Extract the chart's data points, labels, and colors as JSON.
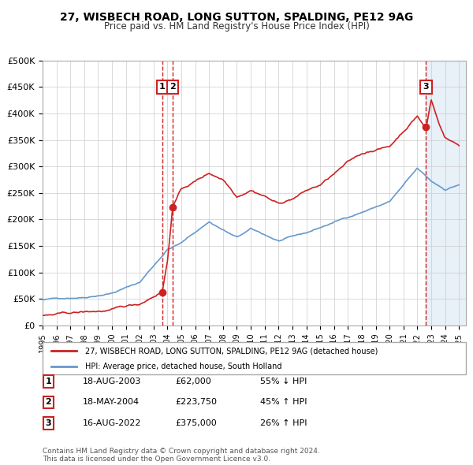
{
  "title": "27, WISBECH ROAD, LONG SUTTON, SPALDING, PE12 9AG",
  "subtitle": "Price paid vs. HM Land Registry's House Price Index (HPI)",
  "xlabel": "",
  "ylabel": "",
  "ylim": [
    0,
    500000
  ],
  "xlim_start": 1995.0,
  "xlim_end": 2025.5,
  "yticks": [
    0,
    50000,
    100000,
    150000,
    200000,
    250000,
    300000,
    350000,
    400000,
    450000,
    500000
  ],
  "ytick_labels": [
    "£0",
    "£50K",
    "£100K",
    "£150K",
    "£200K",
    "£250K",
    "£300K",
    "£350K",
    "£400K",
    "£450K",
    "£500K"
  ],
  "hpi_color": "#6699cc",
  "price_color": "#cc2222",
  "sale_dot_color": "#cc2222",
  "vline_color": "#cc2222",
  "bg_shade_color": "#e8f0f8",
  "sale1_x": 2003.625,
  "sale1_y": 62000,
  "sale1_label": "1",
  "sale2_x": 2004.375,
  "sale2_y": 223750,
  "sale2_label": "2",
  "sale3_x": 2022.625,
  "sale3_y": 375000,
  "sale3_label": "3",
  "legend_line1": "27, WISBECH ROAD, LONG SUTTON, SPALDING, PE12 9AG (detached house)",
  "legend_line2": "HPI: Average price, detached house, South Holland",
  "table_rows": [
    [
      "1",
      "18-AUG-2003",
      "£62,000",
      "55% ↓ HPI"
    ],
    [
      "2",
      "18-MAY-2004",
      "£223,750",
      "45% ↑ HPI"
    ],
    [
      "3",
      "16-AUG-2022",
      "£375,000",
      "26% ↑ HPI"
    ]
  ],
  "footnote": "Contains HM Land Registry data © Crown copyright and database right 2024.\nThis data is licensed under the Open Government Licence v3.0."
}
